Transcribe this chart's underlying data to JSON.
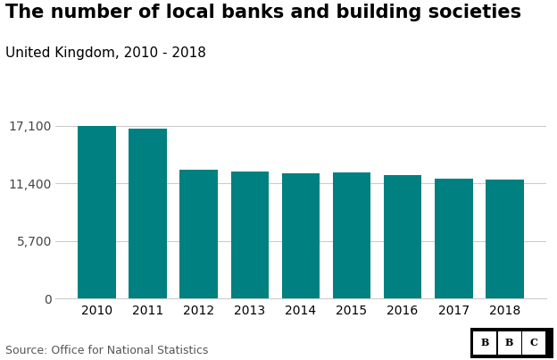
{
  "title": "The number of local banks and building societies",
  "subtitle": "United Kingdom, 2010 - 2018",
  "years": [
    2010,
    2011,
    2012,
    2013,
    2014,
    2015,
    2016,
    2017,
    2018
  ],
  "values": [
    17100,
    16800,
    12750,
    12600,
    12400,
    12450,
    12250,
    11900,
    11750
  ],
  "bar_color": "#008080",
  "background_color": "#ffffff",
  "yticks": [
    0,
    5700,
    11400,
    17100
  ],
  "ylim": [
    0,
    18500
  ],
  "source_text": "Source: Office for National Statistics",
  "bbc_text": "BBC",
  "title_fontsize": 15,
  "subtitle_fontsize": 11,
  "tick_fontsize": 10,
  "source_fontsize": 9
}
